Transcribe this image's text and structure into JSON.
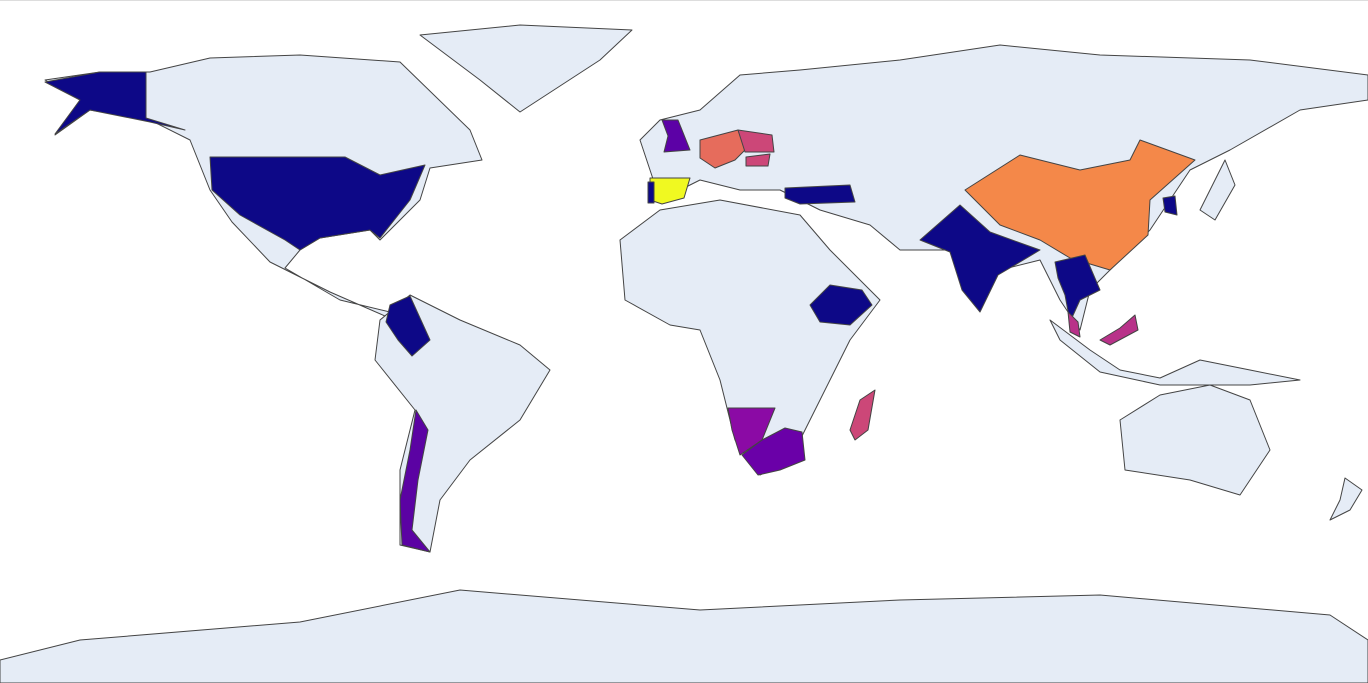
{
  "map": {
    "land_color": "#e5ecf6",
    "border_color": "#444444",
    "regions": [
      {
        "color": "#0d0887"
      },
      {
        "color": "#0d0887"
      },
      {
        "color": "#0d0887"
      },
      {
        "color": "#5b02a3"
      },
      {
        "color": "#f0f921"
      },
      {
        "color": "#0d0887"
      },
      {
        "color": "#5c01a6"
      },
      {
        "color": "#e66c5c"
      },
      {
        "color": "#cc4778"
      },
      {
        "color": "#cc4778"
      },
      {
        "color": "#0d0887"
      },
      {
        "color": "#f48849"
      },
      {
        "color": "#0d0887"
      },
      {
        "color": "#0d0887"
      },
      {
        "color": "#b83289"
      },
      {
        "color": "#b83289"
      },
      {
        "color": "#0d0887"
      },
      {
        "color": "#0d0887"
      },
      {
        "color": "#8b0aa5"
      },
      {
        "color": "#6a00a8"
      },
      {
        "color": "#cc4778"
      }
    ]
  }
}
